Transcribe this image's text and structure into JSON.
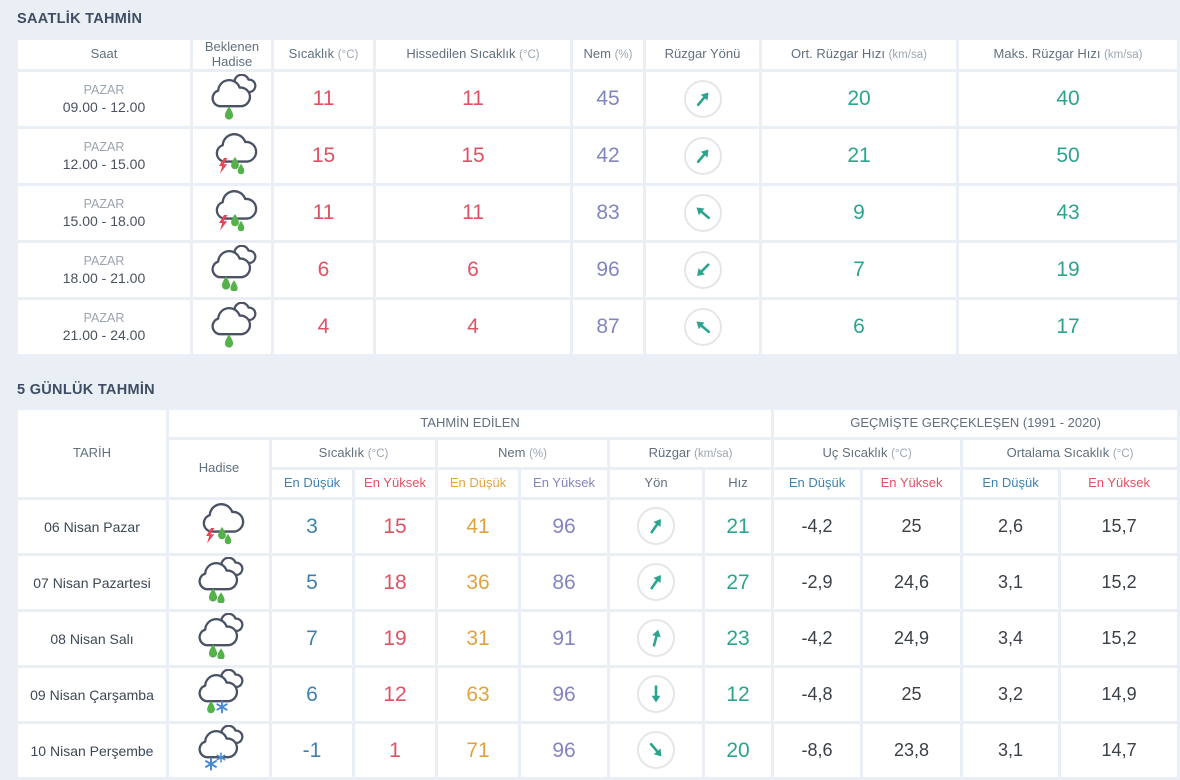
{
  "colors": {
    "bg": "#e9eff4",
    "title": "#3e4d64",
    "header_text": "#61707f",
    "unit_text": "#9aa7b3",
    "red": "#e05263",
    "purple": "#8185c0",
    "teal": "#2ca48e",
    "blue": "#3f81ad",
    "orange": "#dfa441",
    "dark": "#3b4148",
    "cloud": "#4a5263",
    "drop": "#55b24b",
    "bolt": "#e8455a",
    "flake": "#4a8ad2"
  },
  "hourly": {
    "title": "SAATLİK TAHMİN",
    "columns": [
      {
        "label": "Saat",
        "unit": ""
      },
      {
        "label": "Beklenen Hadise",
        "unit": ""
      },
      {
        "label": "Sıcaklık",
        "unit": "(°C)"
      },
      {
        "label": "Hissedilen Sıcaklık",
        "unit": "(°C)"
      },
      {
        "label": "Nem",
        "unit": "(%)"
      },
      {
        "label": "Rüzgar Yönü",
        "unit": ""
      },
      {
        "label": "Ort. Rüzgar Hızı",
        "unit": "(km/sa)"
      },
      {
        "label": "Maks. Rüzgar Hızı",
        "unit": "(km/sa)"
      }
    ],
    "rows": [
      {
        "day": "PAZAR",
        "time": "09.00 - 12.00",
        "icon": "rain-light",
        "temp": "11",
        "feels": "11",
        "humidity": "45",
        "wind_dir_deg": 40,
        "wind_avg": "20",
        "wind_max": "40"
      },
      {
        "day": "PAZAR",
        "time": "12.00 - 15.00",
        "icon": "thunderstorm",
        "temp": "15",
        "feels": "15",
        "humidity": "42",
        "wind_dir_deg": 40,
        "wind_avg": "21",
        "wind_max": "50"
      },
      {
        "day": "PAZAR",
        "time": "15.00 - 18.00",
        "icon": "thunderstorm",
        "temp": "11",
        "feels": "11",
        "humidity": "83",
        "wind_dir_deg": -50,
        "wind_avg": "9",
        "wind_max": "43"
      },
      {
        "day": "PAZAR",
        "time": "18.00 - 21.00",
        "icon": "rain",
        "temp": "6",
        "feels": "6",
        "humidity": "96",
        "wind_dir_deg": -135,
        "wind_avg": "7",
        "wind_max": "19"
      },
      {
        "day": "PAZAR",
        "time": "21.00 - 24.00",
        "icon": "rain-light",
        "temp": "4",
        "feels": "4",
        "humidity": "87",
        "wind_dir_deg": -50,
        "wind_avg": "6",
        "wind_max": "17"
      }
    ]
  },
  "daily": {
    "title": "5 GÜNLÜK TAHMİN",
    "headers": {
      "tarih": "TARİH",
      "hadise": "Hadise",
      "forecast_group": "TAHMİN EDİLEN",
      "past_group": "GEÇMİŞTE GERÇEKLEŞEN (1991 - 2020)"
    },
    "groups": {
      "sicaklik": {
        "label": "Sıcaklık",
        "unit": "(°C)"
      },
      "nem": {
        "label": "Nem",
        "unit": "(%)"
      },
      "ruzgar": {
        "label": "Rüzgar",
        "unit": "(km/sa)"
      },
      "uc": {
        "label": "Uç Sıcaklık",
        "unit": "(°C)"
      },
      "ort": {
        "label": "Ortalama Sıcaklık",
        "unit": "(°C)"
      }
    },
    "sub": {
      "min": "En Düşük",
      "max": "En Yüksek",
      "yon": "Yön",
      "hiz": "Hız"
    },
    "rows": [
      {
        "date": "06 Nisan Pazar",
        "icon": "thunderstorm",
        "tmin": "3",
        "tmax": "15",
        "hmin": "41",
        "hmax": "96",
        "wind_dir_deg": 35,
        "wind_speed": "21",
        "uc_min": "-4,2",
        "uc_max": "25",
        "ort_min": "2,6",
        "ort_max": "15,7"
      },
      {
        "date": "07 Nisan Pazartesi",
        "icon": "rain",
        "tmin": "5",
        "tmax": "18",
        "hmin": "36",
        "hmax": "86",
        "wind_dir_deg": 35,
        "wind_speed": "27",
        "uc_min": "-2,9",
        "uc_max": "24,6",
        "ort_min": "3,1",
        "ort_max": "15,2"
      },
      {
        "date": "08 Nisan Salı",
        "icon": "rain",
        "tmin": "7",
        "tmax": "19",
        "hmin": "31",
        "hmax": "91",
        "wind_dir_deg": 15,
        "wind_speed": "23",
        "uc_min": "-4,2",
        "uc_max": "24,9",
        "ort_min": "3,4",
        "ort_max": "15,2"
      },
      {
        "date": "09 Nisan Çarşamba",
        "icon": "sleet",
        "tmin": "6",
        "tmax": "12",
        "hmin": "63",
        "hmax": "96",
        "wind_dir_deg": 180,
        "wind_speed": "12",
        "uc_min": "-4,8",
        "uc_max": "25",
        "ort_min": "3,2",
        "ort_max": "14,9"
      },
      {
        "date": "10 Nisan Perşembe",
        "icon": "snow",
        "tmin": "-1",
        "tmax": "1",
        "hmin": "71",
        "hmax": "96",
        "wind_dir_deg": 140,
        "wind_speed": "20",
        "uc_min": "-8,6",
        "uc_max": "23,8",
        "ort_min": "3,1",
        "ort_max": "14,7"
      }
    ]
  }
}
